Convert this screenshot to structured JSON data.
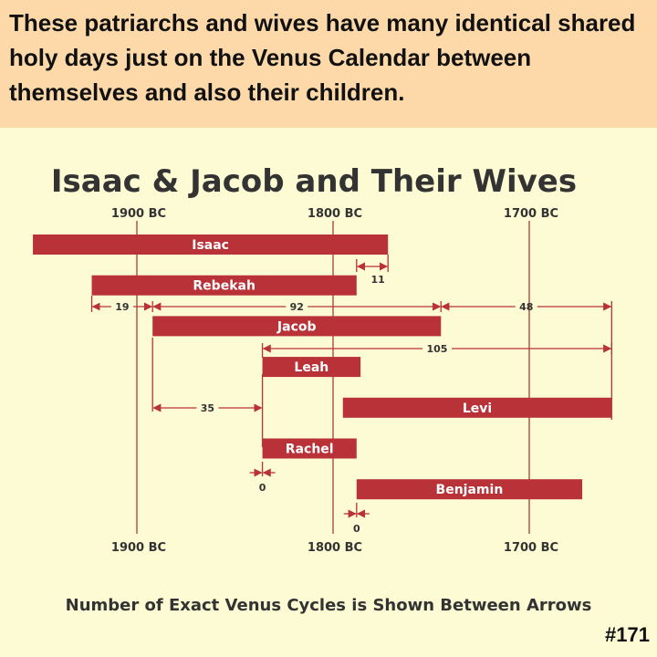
{
  "header": {
    "text": "These patriarchs and wives have many identical shared holy days just on the Venus Calendar between themselves and also their children."
  },
  "footer": {
    "note": "Number of Exact Venus Cycles is Shown Between Arrows",
    "badge": "#171"
  },
  "colors": {
    "bar": "#b83238",
    "arrow": "#b83238",
    "gridline": "#9c2e2e",
    "text": "#333333"
  },
  "chart_data": {
    "type": "bar",
    "title": "Isaac & Jacob and Their Wives",
    "x_axis": {
      "ticks": [
        {
          "year": 1900,
          "label": "1900 BC"
        },
        {
          "year": 1800,
          "label": "1800 BC"
        },
        {
          "year": 1700,
          "label": "1700 BC"
        }
      ],
      "range": [
        1953,
        1635
      ]
    },
    "bars": [
      {
        "name": "Isaac",
        "start": 1953,
        "end": 1772
      },
      {
        "name": "Rebekah",
        "start": 1923,
        "end": 1788
      },
      {
        "name": "Jacob",
        "start": 1892,
        "end": 1745
      },
      {
        "name": "Leah",
        "start": 1836,
        "end": 1786
      },
      {
        "name": "Levi",
        "start": 1795,
        "end": 1658
      },
      {
        "name": "Rachel",
        "start": 1836,
        "end": 1788
      },
      {
        "name": "Benjamin",
        "start": 1788,
        "end": 1673
      }
    ],
    "intervals": [
      {
        "label": "11",
        "from": 1788,
        "to": 1772
      },
      {
        "label": "19",
        "from": 1923,
        "to": 1892
      },
      {
        "label": "92",
        "from": 1892,
        "to": 1745
      },
      {
        "label": "48",
        "from": 1745,
        "to": 1658
      },
      {
        "label": "105",
        "from": 1836,
        "to": 1658
      },
      {
        "label": "35",
        "from": 1892,
        "to": 1836
      },
      {
        "label": "0",
        "from": 1836,
        "to": 1836
      },
      {
        "label": "0",
        "from": 1788,
        "to": 1788
      }
    ]
  }
}
